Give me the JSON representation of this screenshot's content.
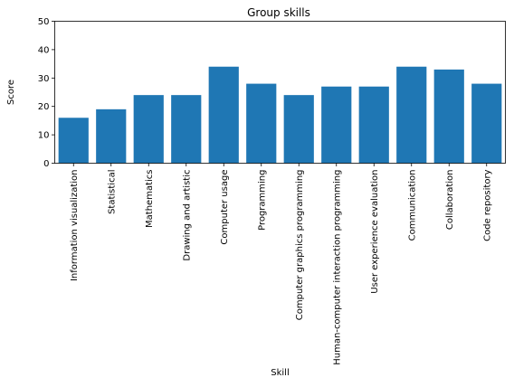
{
  "chart_data": {
    "type": "bar",
    "title": "Group skills",
    "xlabel": "Skill",
    "ylabel": "Score",
    "categories": [
      "Information visualization",
      "Statistical",
      "Mathematics",
      "Drawing and artistic",
      "Computer usage",
      "Programming",
      "Computer graphics programming",
      "Human-computer interaction programming",
      "User experience evaluation",
      "Communication",
      "Collaboration",
      "Code repository"
    ],
    "values": [
      16,
      19,
      24,
      24,
      34,
      28,
      24,
      27,
      27,
      34,
      33,
      28
    ],
    "ylim": [
      0,
      50
    ],
    "yticks": [
      0,
      10,
      20,
      30,
      40,
      50
    ],
    "grid": false,
    "bar_color": "#1f77b4"
  }
}
